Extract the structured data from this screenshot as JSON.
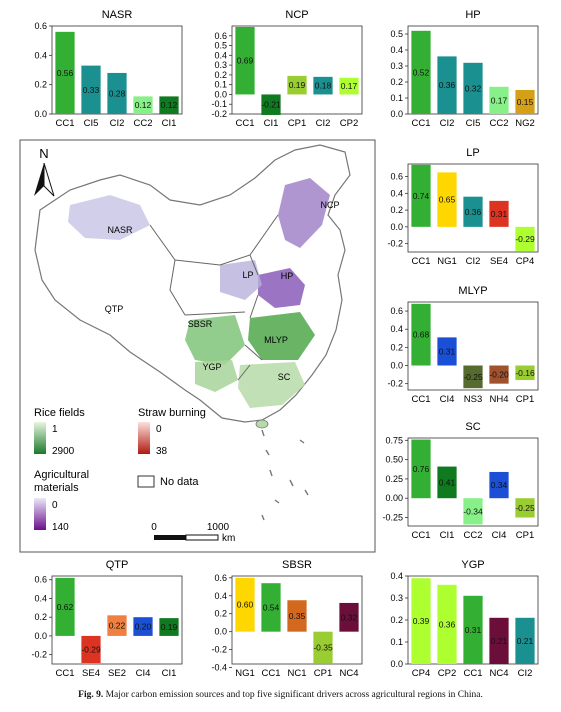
{
  "caption": {
    "label": "Fig. 9.",
    "text": "Major carbon emission sources and top five significant drivers across agricultural regions in China."
  },
  "map": {
    "north": "N",
    "regions": [
      "NASR",
      "NCP",
      "HP",
      "LP",
      "QTP",
      "SBSR",
      "MLYP",
      "YGP",
      "SC"
    ],
    "legend": {
      "rice_title": "Rice fields",
      "rice_min": "1",
      "rice_max": "2900",
      "agri_title_1": "Agricultural",
      "agri_title_2": "materials",
      "agri_min": "0",
      "agri_max": "140",
      "straw_title": "Straw burning",
      "straw_min": "0",
      "straw_max": "38",
      "no_data": "No data"
    },
    "scale": {
      "zero": "0",
      "value": "1000",
      "unit": "km"
    },
    "colors": {
      "rice": "#3a9a3e",
      "agri": "#7a3aa0",
      "straw": "#d23a2a"
    }
  },
  "chart_data": [
    {
      "type": "bar",
      "title": "NASR",
      "categories": [
        "CC1",
        "CI5",
        "CI2",
        "CC2",
        "CI1"
      ],
      "values": [
        0.56,
        0.33,
        0.28,
        0.12,
        0.12
      ],
      "labels": [
        "0.56",
        "0.33",
        "0.28",
        "0.12",
        "0.12"
      ],
      "ylim": [
        0,
        0.6
      ],
      "yticks": [
        "0.0",
        "0.2",
        "0.4",
        "0.6"
      ],
      "colors": [
        "#33b033",
        "#1a9090",
        "#1a9090",
        "#88f088",
        "#107a20"
      ]
    },
    {
      "type": "bar",
      "title": "NCP",
      "categories": [
        "CC1",
        "CI1",
        "CP1",
        "CI2",
        "CP2"
      ],
      "values": [
        0.69,
        -0.21,
        0.19,
        0.18,
        0.17
      ],
      "labels": [
        "0.69",
        "-0.21",
        "0.19",
        "0.18",
        "0.17"
      ],
      "ylim": [
        -0.2,
        0.7
      ],
      "yticks": [
        "-0.2",
        "-0.1",
        "0.0",
        "0.1",
        "0.2",
        "0.3",
        "0.4",
        "0.5",
        "0.6"
      ],
      "colors": [
        "#33b033",
        "#107a20",
        "#9acd32",
        "#1a9090",
        "#adff2f"
      ]
    },
    {
      "type": "bar",
      "title": "HP",
      "categories": [
        "CC1",
        "CI2",
        "CI5",
        "CC2",
        "NG2"
      ],
      "values": [
        0.52,
        0.36,
        0.32,
        0.17,
        0.15
      ],
      "labels": [
        "0.52",
        "0.36",
        "0.32",
        "0.17",
        "0.15"
      ],
      "ylim": [
        0,
        0.55
      ],
      "yticks": [
        "0.0",
        "0.1",
        "0.2",
        "0.3",
        "0.4",
        "0.5"
      ],
      "colors": [
        "#33b033",
        "#1a9090",
        "#1a9090",
        "#88f088",
        "#d4a017"
      ]
    },
    {
      "type": "bar",
      "title": "LP",
      "categories": [
        "CC1",
        "NG1",
        "CI2",
        "SE4",
        "CP4"
      ],
      "values": [
        0.74,
        0.65,
        0.36,
        0.31,
        -0.29
      ],
      "labels": [
        "0.74",
        "0.65",
        "0.36",
        "0.31",
        "-0.29"
      ],
      "ylim": [
        -0.3,
        0.75
      ],
      "yticks": [
        "-0.2",
        "0.0",
        "0.2",
        "0.4",
        "0.6"
      ],
      "colors": [
        "#33b033",
        "#ffd700",
        "#1a9090",
        "#dd3322",
        "#adff2f"
      ]
    },
    {
      "type": "bar",
      "title": "MLYP",
      "categories": [
        "CC1",
        "CI4",
        "NS3",
        "NH4",
        "CP1"
      ],
      "values": [
        0.68,
        0.31,
        -0.25,
        -0.2,
        -0.16
      ],
      "labels": [
        "0.68",
        "0.31",
        "-0.25",
        "-0.20",
        "-0.16"
      ],
      "ylim": [
        -0.27,
        0.7
      ],
      "yticks": [
        "-0.2",
        "0.0",
        "0.2",
        "0.4",
        "0.6"
      ],
      "colors": [
        "#33b033",
        "#1a4fd6",
        "#556b2f",
        "#a0522d",
        "#9acd32"
      ]
    },
    {
      "type": "bar",
      "title": "SC",
      "categories": [
        "CC1",
        "CI1",
        "CC2",
        "CI4",
        "CP1"
      ],
      "values": [
        0.76,
        0.41,
        -0.34,
        0.34,
        -0.25
      ],
      "labels": [
        "0.76",
        "0.41",
        "-0.34",
        "0.34",
        "-0.25"
      ],
      "ylim": [
        -0.36,
        0.78
      ],
      "yticks": [
        "-0.25",
        "0.00",
        "0.25",
        "0.50",
        "0.75"
      ],
      "colors": [
        "#33b033",
        "#107a20",
        "#88f088",
        "#1a4fd6",
        "#9acd32"
      ]
    },
    {
      "type": "bar",
      "title": "QTP",
      "categories": [
        "CC1",
        "SE4",
        "SE2",
        "CI4",
        "CI1"
      ],
      "values": [
        0.62,
        -0.29,
        0.22,
        0.2,
        0.19
      ],
      "labels": [
        "0.62",
        "-0.29",
        "0.22",
        "0.20",
        "0.19"
      ],
      "ylim": [
        -0.3,
        0.64
      ],
      "yticks": [
        "-0.2",
        "0.0",
        "0.2",
        "0.4",
        "0.6"
      ],
      "colors": [
        "#33b033",
        "#dd3322",
        "#f08040",
        "#1a4fd6",
        "#107a20"
      ]
    },
    {
      "type": "bar",
      "title": "SBSR",
      "categories": [
        "NG1",
        "CC1",
        "NC1",
        "CP1",
        "NC4"
      ],
      "values": [
        0.6,
        0.54,
        0.35,
        -0.35,
        0.32
      ],
      "labels": [
        "0.60",
        "0.54",
        "0.35",
        "-0.35",
        "0.32"
      ],
      "ylim": [
        -0.36,
        0.62
      ],
      "yticks": [
        "-0.4",
        "-0.2",
        "0.0",
        "0.2",
        "0.4",
        "0.6"
      ],
      "colors": [
        "#ffd700",
        "#33b033",
        "#d2691e",
        "#9acd32",
        "#6b0f3a"
      ]
    },
    {
      "type": "bar",
      "title": "YGP",
      "categories": [
        "CP4",
        "CP2",
        "CC1",
        "NC4",
        "CI2"
      ],
      "values": [
        0.39,
        0.36,
        0.31,
        0.21,
        0.21
      ],
      "labels": [
        "0.39",
        "0.36",
        "0.31",
        "0.21",
        "0.21"
      ],
      "ylim": [
        0,
        0.4
      ],
      "yticks": [
        "0.0",
        "0.1",
        "0.2",
        "0.3",
        "0.4"
      ],
      "colors": [
        "#adff2f",
        "#adff2f",
        "#33b033",
        "#6b0f3a",
        "#1a9090"
      ]
    }
  ]
}
